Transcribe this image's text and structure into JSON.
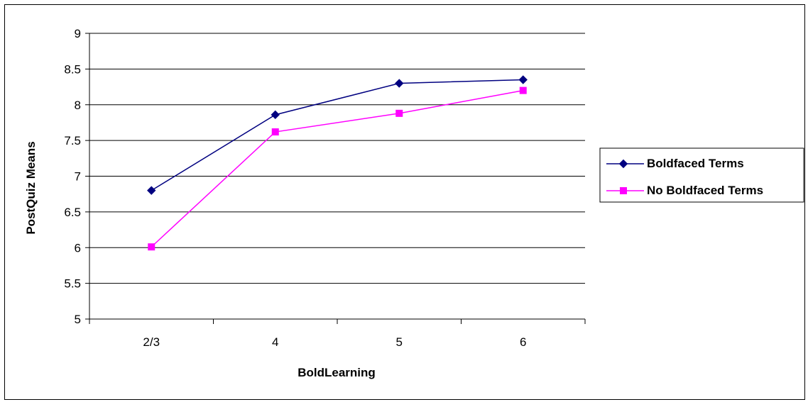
{
  "chart_data": {
    "type": "line",
    "title": "",
    "xlabel": "BoldLearning",
    "ylabel": "PostQuiz Means",
    "categories": [
      "2/3",
      "4",
      "5",
      "6"
    ],
    "ylim": [
      5,
      9
    ],
    "yticks": [
      "5",
      "5.5",
      "6",
      "6.5",
      "7",
      "7.5",
      "8",
      "8.5",
      "9"
    ],
    "grid": "horizontal",
    "legend_position": "right",
    "series": [
      {
        "name": "Boldfaced Terms",
        "values": [
          6.8,
          7.86,
          8.3,
          8.35
        ],
        "color": "#000080",
        "marker": "diamond"
      },
      {
        "name": "No Boldfaced Terms",
        "values": [
          6.01,
          7.62,
          7.88,
          8.2
        ],
        "color": "#ff00ff",
        "marker": "square"
      }
    ]
  }
}
